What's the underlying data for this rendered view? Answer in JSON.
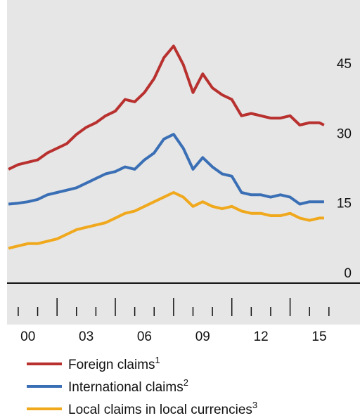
{
  "chart_data": {
    "type": "line",
    "x": [
      1999.5,
      2000,
      2000.5,
      2001,
      2001.5,
      2002,
      2002.5,
      2003,
      2003.5,
      2004,
      2004.5,
      2005,
      2005.5,
      2006,
      2006.5,
      2007,
      2007.5,
      2008,
      2008.5,
      2009,
      2009.5,
      2010,
      2010.5,
      2011,
      2011.5,
      2012,
      2012.5,
      2013,
      2013.5,
      2014,
      2014.5,
      2015,
      2015.5,
      2015.75
    ],
    "series": [
      {
        "name": "Foreign claims",
        "note": "1",
        "color": "#b8312f",
        "values": [
          24.5,
          25.5,
          26,
          26.5,
          28,
          29,
          30,
          32,
          33.5,
          34.5,
          36,
          37,
          39.5,
          39,
          41,
          44,
          48.5,
          51,
          47,
          41,
          45,
          42,
          40.5,
          39.5,
          36,
          36.5,
          36,
          35.5,
          35.5,
          36,
          34,
          34.5,
          34.5,
          34
        ]
      },
      {
        "name": "International claims",
        "note": "2",
        "color": "#3a6fb5",
        "values": [
          17,
          17.2,
          17.5,
          18,
          19,
          19.5,
          20,
          20.5,
          21.5,
          22.5,
          23.5,
          24,
          25,
          24.5,
          26.5,
          28,
          31,
          32,
          29,
          24.5,
          27,
          25,
          23.5,
          23,
          19.5,
          19,
          19,
          18.5,
          19,
          18.5,
          17,
          17.5,
          17.5,
          17.5
        ]
      },
      {
        "name": "Local claims in local currencies",
        "note": "3",
        "color": "#f0a81c",
        "values": [
          7.5,
          8,
          8.5,
          8.5,
          9,
          9.5,
          10.5,
          11.5,
          12,
          12.5,
          13,
          14,
          15,
          15.5,
          16.5,
          17.5,
          18.5,
          19.5,
          18.5,
          16.5,
          17.5,
          16.5,
          16,
          16.5,
          15.5,
          15,
          15,
          14.5,
          14.5,
          15,
          14,
          13.5,
          14,
          14
        ]
      }
    ],
    "xlim": [
      1999.46,
      2017.6
    ],
    "xticks": [
      {
        "value": 2000.5,
        "label": "00"
      },
      {
        "value": 2003.5,
        "label": "03"
      },
      {
        "value": 2006.5,
        "label": "06"
      },
      {
        "value": 2009.5,
        "label": "09"
      },
      {
        "value": 2012.5,
        "label": "12"
      },
      {
        "value": 2015.5,
        "label": "15"
      }
    ],
    "xtick_marks": [
      2000,
      2001,
      2002,
      2003,
      2004,
      2005,
      2006,
      2007,
      2008,
      2009,
      2010,
      2011,
      2012,
      2013,
      2014,
      2015,
      2016
    ],
    "xtick_major_every": 3,
    "ylim": [
      0,
      60.9
    ],
    "yticks": [
      0,
      15,
      30,
      45
    ],
    "grid": false
  }
}
